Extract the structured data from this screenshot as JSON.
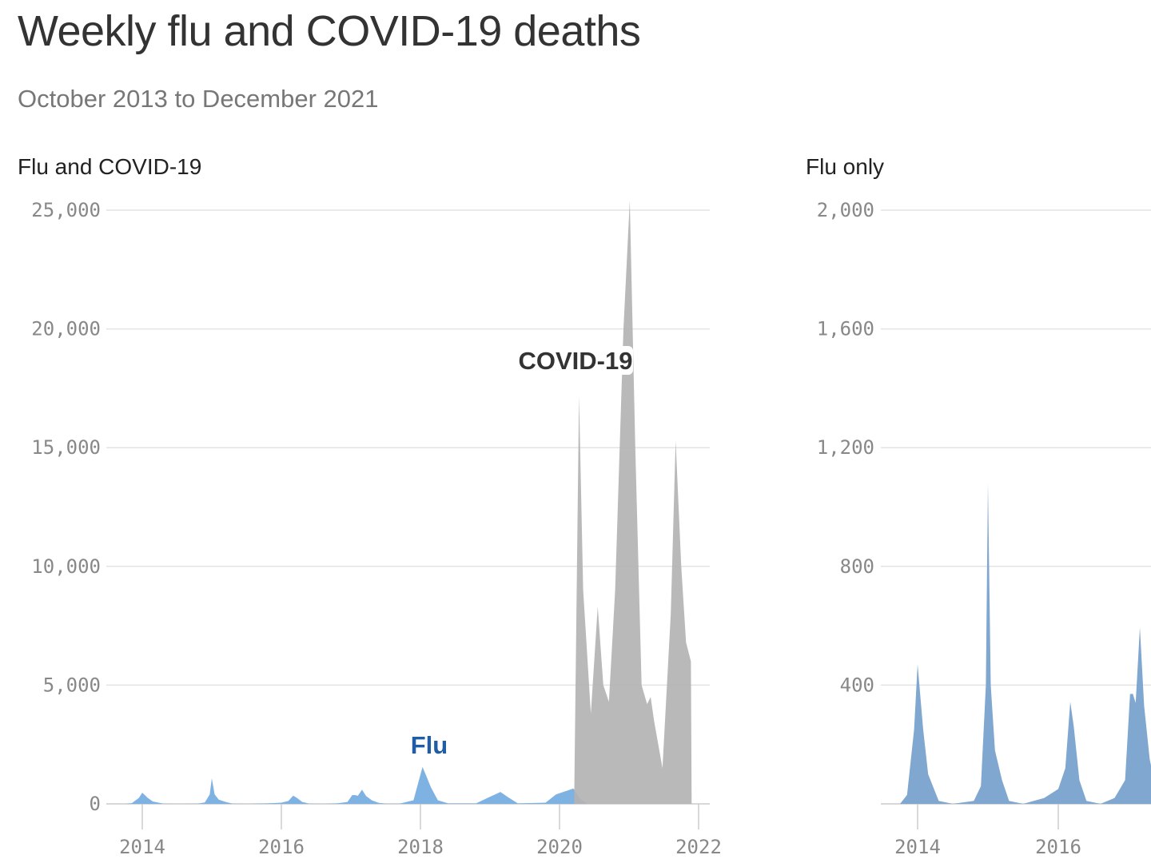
{
  "title": "Weekly flu and COVID-19 deaths",
  "subtitle": "October 2013 to December 2021",
  "colors": {
    "flu_left": "#7eb2e2",
    "flu_right": "#80a7cf",
    "covid": "#b3b3b3",
    "flu_label": "#1f5da6",
    "covid_label": "#333333",
    "grid": "#e3e3e3"
  },
  "chart_data": [
    {
      "type": "area",
      "title": "Flu and COVID-19",
      "xlim": [
        2013.5,
        2022.05
      ],
      "ylim": [
        0,
        25000
      ],
      "grid": true,
      "x_ticks": [
        2014,
        2016,
        2018,
        2020,
        2022
      ],
      "x_tick_labels": [
        "2014",
        "2016",
        "2018",
        "2020",
        "2022"
      ],
      "y_ticks": [
        0,
        5000,
        10000,
        15000,
        20000,
        25000
      ],
      "y_tick_labels": [
        "0",
        "5,000",
        "10,000",
        "15,000",
        "20,000",
        "25,000"
      ],
      "annotations": [
        {
          "text": "Flu",
          "series": "Flu"
        },
        {
          "text": "COVID-19",
          "series": "COVID-19"
        }
      ],
      "series": [
        {
          "name": "Flu",
          "points": [
            [
              2013.75,
              0
            ],
            [
              2013.85,
              30
            ],
            [
              2013.95,
              250
            ],
            [
              2014.0,
              470
            ],
            [
              2014.08,
              250
            ],
            [
              2014.15,
              100
            ],
            [
              2014.2,
              70
            ],
            [
              2014.3,
              10
            ],
            [
              2014.5,
              0
            ],
            [
              2014.8,
              10
            ],
            [
              2014.9,
              60
            ],
            [
              2014.97,
              400
            ],
            [
              2015.0,
              1080
            ],
            [
              2015.04,
              400
            ],
            [
              2015.1,
              180
            ],
            [
              2015.2,
              80
            ],
            [
              2015.3,
              10
            ],
            [
              2015.5,
              0
            ],
            [
              2015.8,
              20
            ],
            [
              2016.0,
              50
            ],
            [
              2016.1,
              120
            ],
            [
              2016.17,
              344
            ],
            [
              2016.22,
              260
            ],
            [
              2016.3,
              80
            ],
            [
              2016.4,
              10
            ],
            [
              2016.6,
              0
            ],
            [
              2016.8,
              20
            ],
            [
              2016.95,
              80
            ],
            [
              2017.02,
              370
            ],
            [
              2017.06,
              371
            ],
            [
              2017.1,
              340
            ],
            [
              2017.16,
              594
            ],
            [
              2017.22,
              330
            ],
            [
              2017.3,
              150
            ],
            [
              2017.4,
              40
            ],
            [
              2017.5,
              10
            ],
            [
              2017.7,
              10
            ],
            [
              2017.9,
              150
            ],
            [
              2018.03,
              1550
            ],
            [
              2018.08,
              1200
            ],
            [
              2018.15,
              700
            ],
            [
              2018.25,
              150
            ],
            [
              2018.4,
              20
            ],
            [
              2018.8,
              20
            ],
            [
              2019.0,
              300
            ],
            [
              2019.15,
              500
            ],
            [
              2019.25,
              300
            ],
            [
              2019.4,
              20
            ],
            [
              2019.8,
              50
            ],
            [
              2019.95,
              400
            ],
            [
              2020.1,
              550
            ],
            [
              2020.2,
              650
            ],
            [
              2020.3,
              200
            ],
            [
              2020.4,
              0
            ],
            [
              2021.9,
              0
            ]
          ]
        },
        {
          "name": "COVID-19",
          "points": [
            [
              2020.21,
              0
            ],
            [
              2020.28,
              17200
            ],
            [
              2020.34,
              9000
            ],
            [
              2020.45,
              3800
            ],
            [
              2020.55,
              8300
            ],
            [
              2020.63,
              5000
            ],
            [
              2020.71,
              4300
            ],
            [
              2020.8,
              9000
            ],
            [
              2020.92,
              20000
            ],
            [
              2021.01,
              25400
            ],
            [
              2021.09,
              15000
            ],
            [
              2021.18,
              5000
            ],
            [
              2021.26,
              4200
            ],
            [
              2021.31,
              4500
            ],
            [
              2021.36,
              3500
            ],
            [
              2021.48,
              1500
            ],
            [
              2021.6,
              8000
            ],
            [
              2021.67,
              15300
            ],
            [
              2021.75,
              10000
            ],
            [
              2021.82,
              6800
            ],
            [
              2021.89,
              6000
            ],
            [
              2021.9,
              0
            ]
          ]
        }
      ]
    },
    {
      "type": "area",
      "title": "Flu only",
      "ylim": [
        0,
        2000
      ],
      "grid": true,
      "x_ticks": [
        2014,
        2016
      ],
      "x_tick_labels": [
        "2014",
        "2016"
      ],
      "y_ticks": [
        400,
        800,
        1200,
        1600,
        2000
      ],
      "y_tick_labels": [
        "400",
        "800",
        "1,200",
        "1,600",
        "2,000"
      ],
      "series": [
        {
          "name": "Flu",
          "same_as": "Flu"
        }
      ]
    }
  ]
}
